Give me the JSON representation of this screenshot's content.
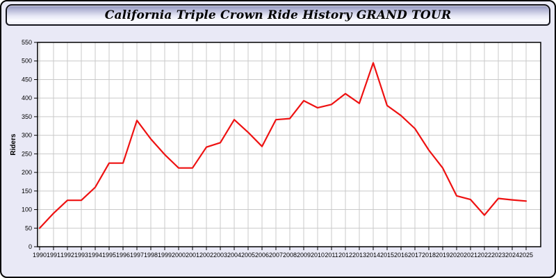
{
  "window": {
    "title": "California Triple Crown Ride History GRAND TOUR"
  },
  "colors": {
    "page_background": "#e9e9f6",
    "titlebar_top": "#8f92bb",
    "titlebar_bottom": "#fbfbff",
    "plot_background": "#ffffff",
    "grid": "#c9c9c9",
    "axis": "#000000",
    "series_red": "#ee1111"
  },
  "chart_data": {
    "type": "line",
    "title": "California Triple Crown Ride History GRAND TOUR",
    "xlabel": "",
    "ylabel": "Riders",
    "ylim": [
      0,
      550
    ],
    "ytick_step": 50,
    "grid": true,
    "legend_position": "none",
    "categories": [
      "1990",
      "1991",
      "1992",
      "1993",
      "1994",
      "1995",
      "1996",
      "1997",
      "1998",
      "1999",
      "2000",
      "2001",
      "2002",
      "2003",
      "2004",
      "2005",
      "2006",
      "2007",
      "2008",
      "2009",
      "2010",
      "2011",
      "2012",
      "2013",
      "2014",
      "2015",
      "2016",
      "2017",
      "2018",
      "2019",
      "2020",
      "2021",
      "2022",
      "2023",
      "2024",
      "2025"
    ],
    "series": [
      {
        "name": "Riders",
        "color": "#ee1111",
        "values": [
          50,
          90,
          125,
          125,
          160,
          225,
          225,
          340,
          290,
          248,
          212,
          212,
          268,
          280,
          342,
          308,
          270,
          342,
          345,
          393,
          374,
          383,
          412,
          386,
          495,
          380,
          353,
          318,
          260,
          212,
          137,
          127,
          85,
          130,
          126,
          123
        ]
      }
    ]
  }
}
